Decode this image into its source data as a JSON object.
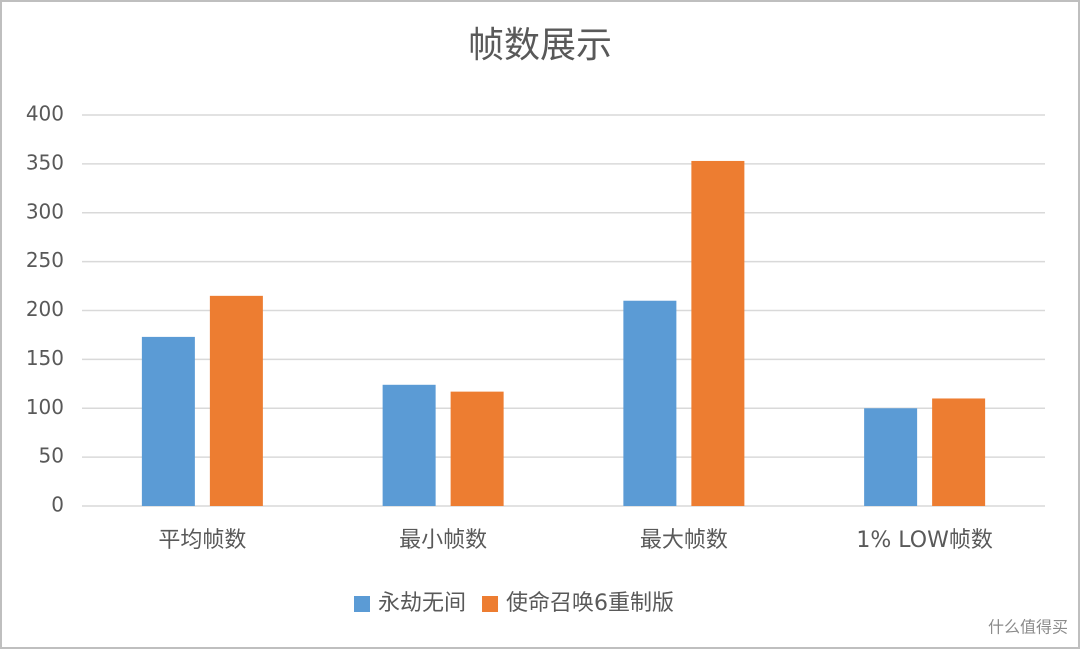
{
  "chart_data": {
    "type": "bar",
    "title": "帧数展示",
    "categories": [
      "平均帧数",
      "最小帧数",
      "最大帧数",
      "1% LOW帧数"
    ],
    "series": [
      {
        "name": "永劫无间",
        "color": "#5b9bd5",
        "values": [
          173,
          124,
          210,
          100
        ]
      },
      {
        "name": "使命召唤6重制版",
        "color": "#ed7d31",
        "values": [
          215,
          117,
          353,
          110
        ]
      }
    ],
    "ylim": [
      0,
      400
    ],
    "yticks": [
      0,
      50,
      100,
      150,
      200,
      250,
      300,
      350,
      400
    ],
    "grid": true,
    "legend": "bottom"
  },
  "watermark": "什么值得买"
}
